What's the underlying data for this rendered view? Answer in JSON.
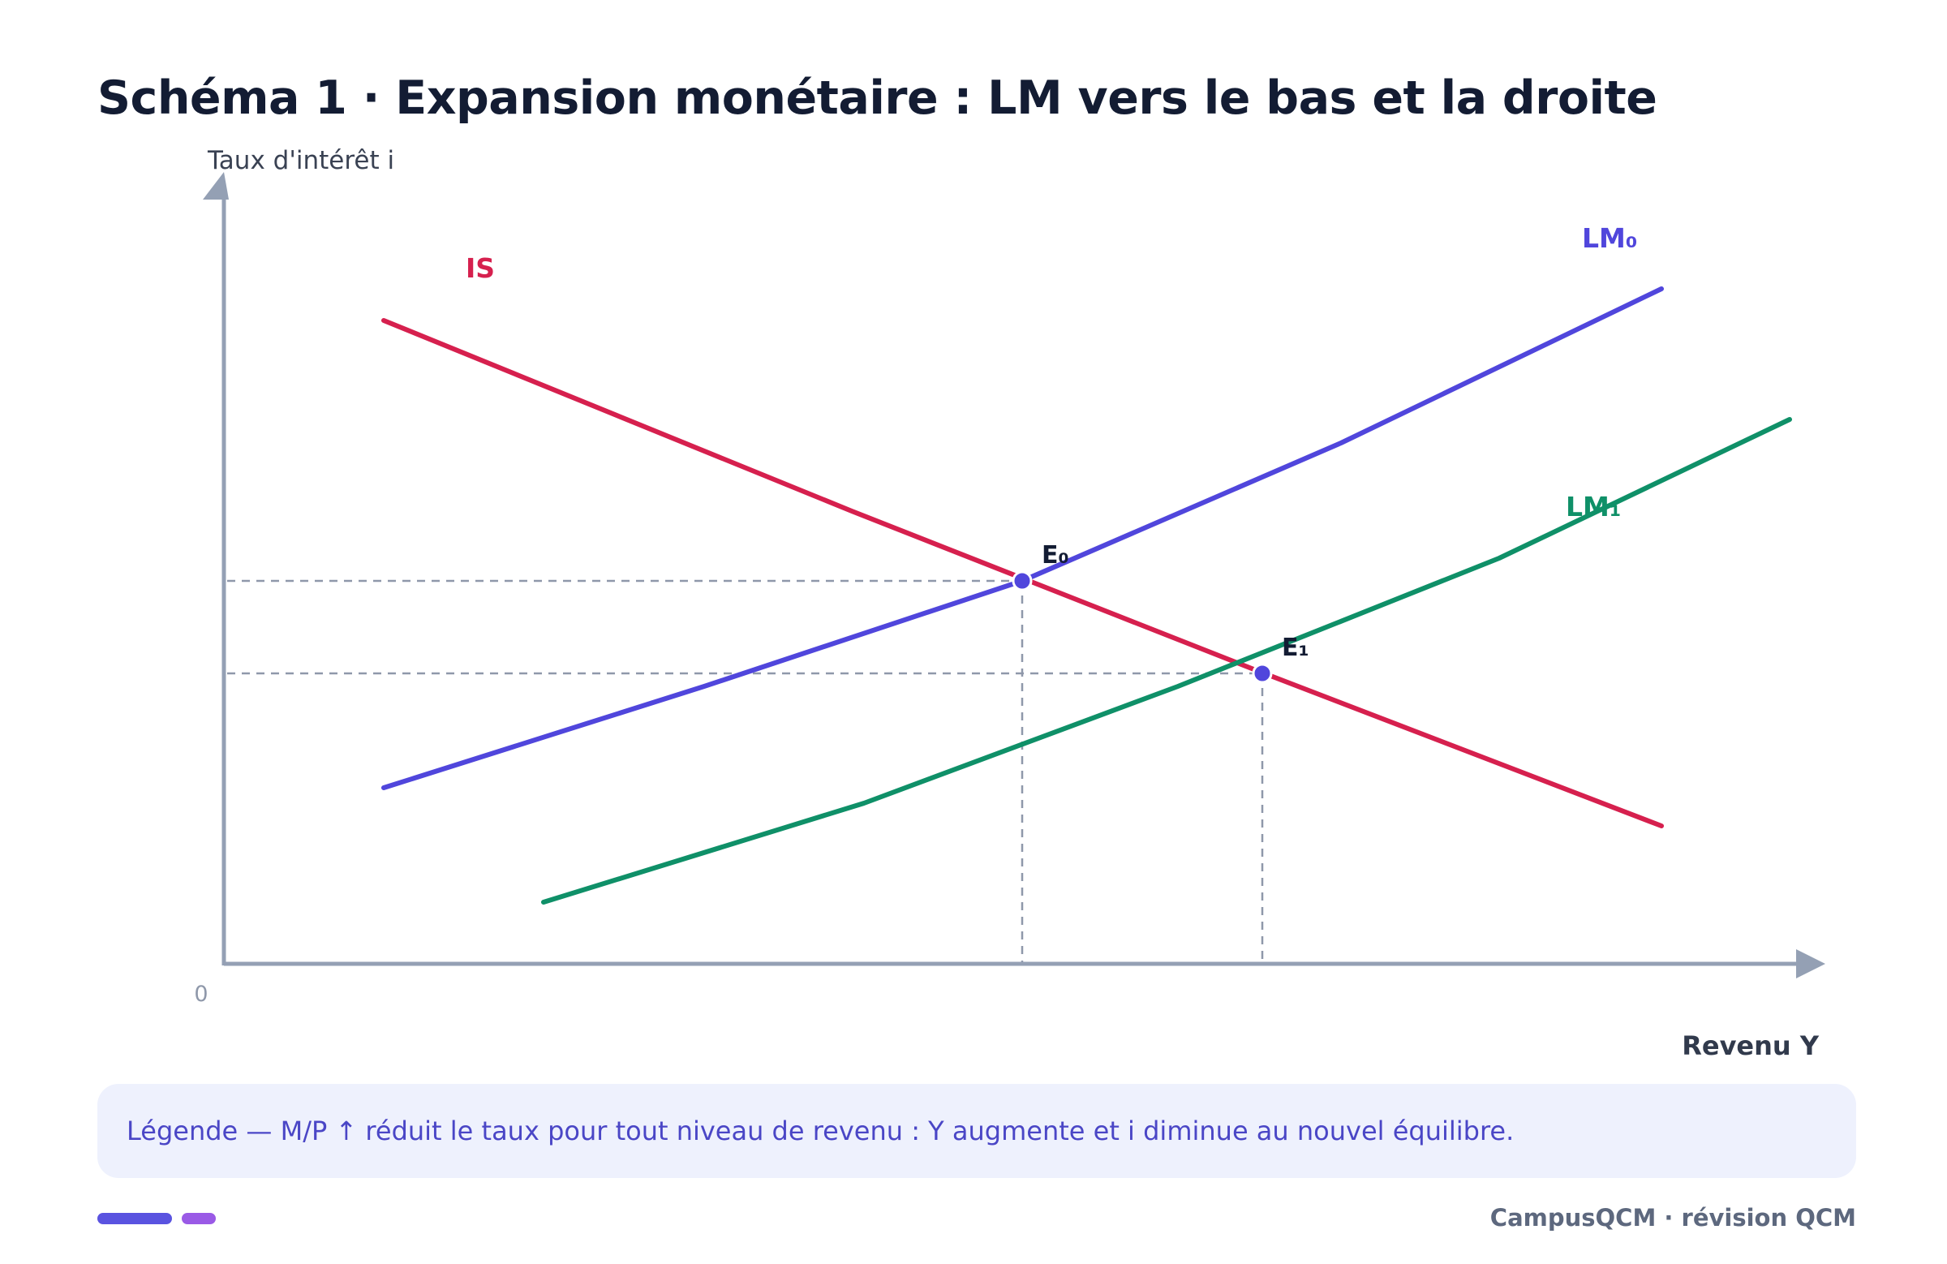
{
  "title": "Schéma 1 · Expansion monétaire : LM vers le bas et la droite",
  "axes": {
    "y_label": "Taux d'intérêt i",
    "x_label": "Revenu Y",
    "origin_label": "0"
  },
  "curves": {
    "is": {
      "label": "IS",
      "color": "#d6204e"
    },
    "lm0": {
      "label": "LM₀",
      "color": "#5046dc"
    },
    "lm1": {
      "label": "LM₁",
      "color": "#0f9068"
    }
  },
  "points": {
    "e0": {
      "label": "E₀",
      "color": "#5046dc"
    },
    "e1": {
      "label": "E₁",
      "color": "#5046dc"
    }
  },
  "legend": "Légende — M/P ↑ réduit le taux pour tout niveau de revenu : Y augmente et i diminue au nouvel équilibre.",
  "footer": {
    "brand": "CampusQCM · révision QCM"
  },
  "colors": {
    "title": "#131c33",
    "axis": "#94a0b4",
    "guide": "#8f98aa",
    "legend_bg": "#eef1fd",
    "legend_text": "#4a46c6",
    "accent_bar_1": "#5a53e0",
    "accent_bar_2": "#9a5ae6",
    "brand_text": "#5d687e"
  }
}
